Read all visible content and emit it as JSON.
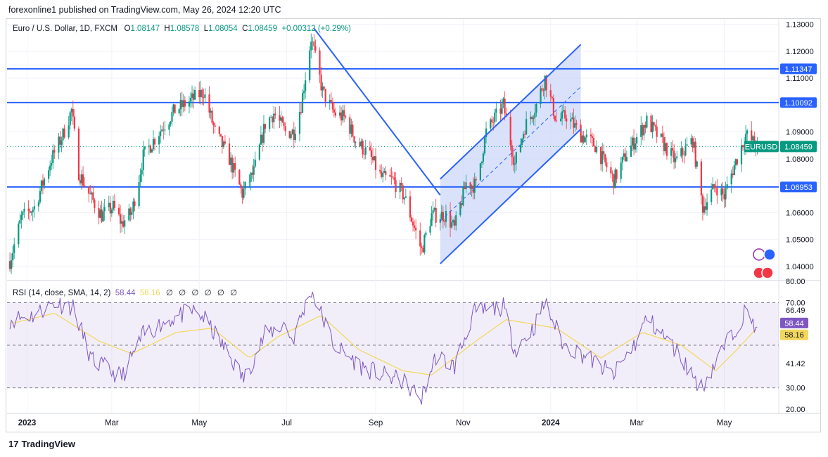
{
  "header": {
    "publisher": "forexonline1 published on TradingView.com, May 26, 2024 12:20 UTC"
  },
  "legend": {
    "symbol": "Euro / U.S. Dollar, 1D, FXCM",
    "open_label": "O",
    "open": "1.08147",
    "high_label": "H",
    "high": "1.08578",
    "low_label": "L",
    "low": "1.08054",
    "close_label": "C",
    "close": "1.08459",
    "change": "+0.00312 (+0.29%)"
  },
  "rsi_legend": {
    "title": "RSI (14, close, SMA, 14, 2)",
    "rsi_value": "58.44",
    "sma_value": "58.16",
    "na": [
      "∅",
      "∅",
      "∅",
      "∅",
      "∅",
      "∅"
    ]
  },
  "footer": {
    "brand": "TradingView",
    "logo": "17"
  },
  "colors": {
    "up": "#089981",
    "down": "#f23645",
    "levels": "#2962ff",
    "rsi": "#7e57c2",
    "rsi_sma": "#f2d75c",
    "channel_fill": "#bbcaf7"
  },
  "chart_data": [
    {
      "type": "candlestick",
      "symbol": "EURUSD",
      "timeframe": "1D",
      "x_ticks": [
        "2023",
        "Mar",
        "May",
        "Jul",
        "Sep",
        "Nov",
        "2024",
        "Mar",
        "May"
      ],
      "x_tick_dates": [
        "2023-01-01",
        "2023-03-01",
        "2023-05-01",
        "2023-07-01",
        "2023-09-01",
        "2023-11-01",
        "2024-01-01",
        "2024-03-01",
        "2024-05-01"
      ],
      "y_ticks": [
        1.04,
        1.05,
        1.06,
        1.08,
        1.09,
        1.11,
        1.12,
        1.13
      ],
      "y_tick_labels": [
        "1.04000",
        "1.05000",
        "1.06000",
        "1.08000",
        "1.09000",
        "1.11000",
        "1.12000",
        "1.13000"
      ],
      "ylim": [
        1.035,
        1.132
      ],
      "current_price": {
        "label": "EURUSD",
        "value": "1.08459"
      },
      "levels": [
        {
          "label": "1.11347",
          "value": 1.11347
        },
        {
          "label": "1.10092",
          "value": 1.10092
        },
        {
          "label": "1.06953",
          "value": 1.06953
        }
      ],
      "price_path": [
        [
          "2022-12-20",
          1.042
        ],
        [
          "2022-12-28",
          1.058
        ],
        [
          "2023-01-06",
          1.062
        ],
        [
          "2023-01-12",
          1.071
        ],
        [
          "2023-01-18",
          1.08
        ],
        [
          "2023-01-26",
          1.089
        ],
        [
          "2023-02-01",
          1.098
        ],
        [
          "2023-02-06",
          1.075
        ],
        [
          "2023-02-14",
          1.066
        ],
        [
          "2023-02-22",
          1.059
        ],
        [
          "2023-03-02",
          1.062
        ],
        [
          "2023-03-08",
          1.056
        ],
        [
          "2023-03-15",
          1.06
        ],
        [
          "2023-03-23",
          1.081
        ],
        [
          "2023-04-03",
          1.09
        ],
        [
          "2023-04-14",
          1.098
        ],
        [
          "2023-04-26",
          1.102
        ],
        [
          "2023-05-04",
          1.105
        ],
        [
          "2023-05-12",
          1.09
        ],
        [
          "2023-05-22",
          1.08
        ],
        [
          "2023-05-31",
          1.067
        ],
        [
          "2023-06-08",
          1.075
        ],
        [
          "2023-06-16",
          1.093
        ],
        [
          "2023-06-22",
          1.097
        ],
        [
          "2023-06-30",
          1.09
        ],
        [
          "2023-07-06",
          1.09
        ],
        [
          "2023-07-11",
          1.1
        ],
        [
          "2023-07-18",
          1.125
        ],
        [
          "2023-07-26",
          1.105
        ],
        [
          "2023-08-03",
          1.097
        ],
        [
          "2023-08-11",
          1.095
        ],
        [
          "2023-08-18",
          1.087
        ],
        [
          "2023-08-28",
          1.081
        ],
        [
          "2023-09-05",
          1.073
        ],
        [
          "2023-09-13",
          1.072
        ],
        [
          "2023-09-21",
          1.066
        ],
        [
          "2023-10-03",
          1.046
        ],
        [
          "2023-10-10",
          1.059
        ],
        [
          "2023-10-20",
          1.059
        ],
        [
          "2023-10-26",
          1.054
        ],
        [
          "2023-11-03",
          1.071
        ],
        [
          "2023-11-10",
          1.07
        ],
        [
          "2023-11-17",
          1.09
        ],
        [
          "2023-11-29",
          1.1
        ],
        [
          "2023-12-07",
          1.078
        ],
        [
          "2023-12-14",
          1.092
        ],
        [
          "2023-12-22",
          1.1
        ],
        [
          "2023-12-28",
          1.11
        ],
        [
          "2024-01-05",
          1.094
        ],
        [
          "2024-01-12",
          1.096
        ],
        [
          "2024-01-22",
          1.089
        ],
        [
          "2024-02-01",
          1.085
        ],
        [
          "2024-02-14",
          1.072
        ],
        [
          "2024-02-23",
          1.082
        ],
        [
          "2024-03-08",
          1.094
        ],
        [
          "2024-03-15",
          1.089
        ],
        [
          "2024-03-28",
          1.079
        ],
        [
          "2024-04-09",
          1.087
        ],
        [
          "2024-04-16",
          1.062
        ],
        [
          "2024-04-25",
          1.07
        ],
        [
          "2024-05-01",
          1.066
        ],
        [
          "2024-05-07",
          1.076
        ],
        [
          "2024-05-16",
          1.089
        ],
        [
          "2024-05-24",
          1.0846
        ]
      ],
      "drawings": [
        {
          "kind": "trendline",
          "from": [
            "2023-07-20",
            1.1285
          ],
          "to": [
            "2023-10-16",
            1.0665
          ]
        },
        {
          "kind": "parallel-channel",
          "upper": [
            [
              "2023-10-16",
              1.0725
            ],
            [
              "2024-01-22",
              1.1225
            ]
          ],
          "lower": [
            [
              "2023-10-16",
              1.041
            ],
            [
              "2024-01-22",
              1.091
            ]
          ],
          "mid": [
            [
              "2023-10-16",
              1.0568
            ],
            [
              "2024-01-22",
              1.1068
            ]
          ]
        }
      ]
    },
    {
      "type": "line",
      "name": "RSI",
      "y_ticks": [
        20,
        30,
        41.42,
        66.49,
        70,
        80
      ],
      "y_tick_labels": [
        "20.00",
        "30.00",
        "41.42",
        "66.49",
        "70.00",
        "80.00"
      ],
      "ylim": [
        18,
        80
      ],
      "bands": [
        30,
        50,
        70
      ],
      "series": [
        {
          "name": "RSI",
          "values": [
            [
              "2022-12-20",
              62
            ],
            [
              "2023-01-05",
              64
            ],
            [
              "2023-01-20",
              70
            ],
            [
              "2023-02-02",
              68
            ],
            [
              "2023-02-15",
              43
            ],
            [
              "2023-03-08",
              35
            ],
            [
              "2023-03-23",
              55
            ],
            [
              "2023-04-10",
              62
            ],
            [
              "2023-04-26",
              66
            ],
            [
              "2023-05-04",
              63
            ],
            [
              "2023-05-22",
              45
            ],
            [
              "2023-06-01",
              34
            ],
            [
              "2023-06-16",
              55
            ],
            [
              "2023-06-30",
              60
            ],
            [
              "2023-07-05",
              52
            ],
            [
              "2023-07-18",
              76
            ],
            [
              "2023-08-03",
              50
            ],
            [
              "2023-08-22",
              40
            ],
            [
              "2023-09-06",
              36
            ],
            [
              "2023-09-20",
              33
            ],
            [
              "2023-10-03",
              25
            ],
            [
              "2023-10-13",
              45
            ],
            [
              "2023-10-26",
              40
            ],
            [
              "2023-11-08",
              65
            ],
            [
              "2023-11-29",
              68
            ],
            [
              "2023-12-07",
              48
            ],
            [
              "2023-12-20",
              58
            ],
            [
              "2023-12-28",
              70
            ],
            [
              "2024-01-10",
              50
            ],
            [
              "2024-01-25",
              45
            ],
            [
              "2024-02-14",
              36
            ],
            [
              "2024-03-01",
              52
            ],
            [
              "2024-03-08",
              63
            ],
            [
              "2024-03-28",
              48
            ],
            [
              "2024-04-15",
              30
            ],
            [
              "2024-04-25",
              42
            ],
            [
              "2024-05-07",
              56
            ],
            [
              "2024-05-16",
              66
            ],
            [
              "2024-05-24",
              58.44
            ]
          ]
        },
        {
          "name": "SMA",
          "values": [
            [
              "2022-12-20",
              60
            ],
            [
              "2023-01-20",
              65
            ],
            [
              "2023-02-20",
              52
            ],
            [
              "2023-03-15",
              46
            ],
            [
              "2023-04-15",
              56
            ],
            [
              "2023-05-10",
              58
            ],
            [
              "2023-06-05",
              44
            ],
            [
              "2023-06-25",
              54
            ],
            [
              "2023-07-25",
              64
            ],
            [
              "2023-08-20",
              48
            ],
            [
              "2023-09-20",
              38
            ],
            [
              "2023-10-10",
              36
            ],
            [
              "2023-11-10",
              52
            ],
            [
              "2023-12-01",
              62
            ],
            [
              "2024-01-05",
              58
            ],
            [
              "2024-02-05",
              44
            ],
            [
              "2024-03-05",
              56
            ],
            [
              "2024-04-01",
              50
            ],
            [
              "2024-04-25",
              38
            ],
            [
              "2024-05-10",
              48
            ],
            [
              "2024-05-24",
              58.16
            ]
          ]
        }
      ],
      "value_labels": [
        {
          "label": "58.44",
          "color": "#7e57c2"
        },
        {
          "label": "58.16",
          "color": "#f2d75c"
        }
      ]
    }
  ]
}
